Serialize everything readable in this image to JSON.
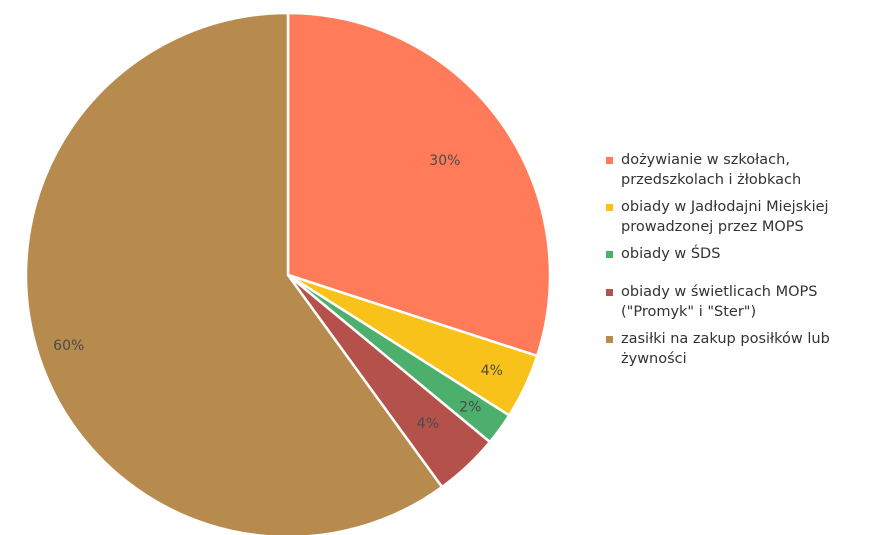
{
  "chart_data": {
    "type": "pie",
    "start_angle_deg": 0,
    "direction": "clockwise",
    "slices": [
      {
        "label": "dożywianie w szkołach,\nprzedszkolach i żłobkach",
        "value": 30,
        "display": "30%",
        "color": "#FF7B5A"
      },
      {
        "label": "obiady w Jadłodajni Miejskiej\nprowadzonej przez MOPS",
        "value": 4,
        "display": "4%",
        "color": "#F9C21B"
      },
      {
        "label": "obiady w ŚDS",
        "value": 2,
        "display": "2%",
        "color": "#4CAF6B"
      },
      {
        "label": "obiady w świetlicach MOPS\n(\"Promyk\" i \"Ster\")",
        "value": 4,
        "display": "4%",
        "color": "#B5514B"
      },
      {
        "label": "zasiłki na zakup posiłków lub\nżywności",
        "value": 60,
        "display": "60%",
        "color": "#B78B4E"
      }
    ],
    "legend_position": "right"
  }
}
